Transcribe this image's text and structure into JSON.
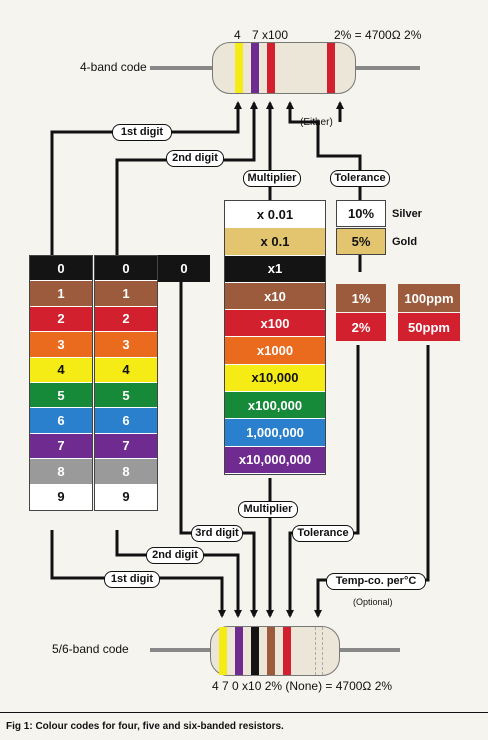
{
  "colors": {
    "black": "#141414",
    "brown": "#9b5b3c",
    "red": "#d2202e",
    "orange": "#ea6a1e",
    "yellow": "#f6ec15",
    "green": "#178a3a",
    "blue": "#2a80cc",
    "violet": "#6f2b8f",
    "grey": "#9a9a9a",
    "white": "#ffffff",
    "gold": "#e2c56e",
    "silver": "#ffffff"
  },
  "top_resistor": {
    "label": "4-band code",
    "band_labels": {
      "d1": "4",
      "d2": "7",
      "mult": "x100",
      "result": "2% = 4700Ω 2%"
    }
  },
  "bottom_resistor": {
    "label": "5/6-band code",
    "bottom_label": "4   7   0   x10  2%  (None)  = 4700Ω 2%"
  },
  "pills": {
    "first_digit_top": "1st digit",
    "second_digit_top": "2nd digit",
    "either": "(Either)",
    "multiplier_top": "Multiplier",
    "tolerance_top": "Tolerance",
    "multiplier_bottom": "Multiplier",
    "third_digit_bottom": "3rd digit",
    "tolerance_bottom": "Tolerance",
    "second_digit_bottom": "2nd digit",
    "first_digit_bottom": "1st digit",
    "tempco": "Temp-co. per°C",
    "optional": "(Optional)"
  },
  "digit_columns": {
    "values": [
      "0",
      "1",
      "2",
      "3",
      "4",
      "5",
      "6",
      "7",
      "8",
      "9"
    ],
    "third_digit_value": "0"
  },
  "multiplier": {
    "values": [
      "x 0.01",
      "x 0.1",
      "x1",
      "x10",
      "x100",
      "x1000",
      "x10,000",
      "x100,000",
      "1,000,000",
      "x10,000,000"
    ]
  },
  "tolerance": {
    "silver_value": "10%",
    "silver_name": "Silver",
    "gold_value": "5%",
    "gold_name": "Gold",
    "brown_value": "1%",
    "red_value": "2%"
  },
  "tempco": {
    "brown_value": "100ppm",
    "red_value": "50ppm"
  },
  "caption": "Fig 1: Colour codes for four, five and six-banded resistors."
}
